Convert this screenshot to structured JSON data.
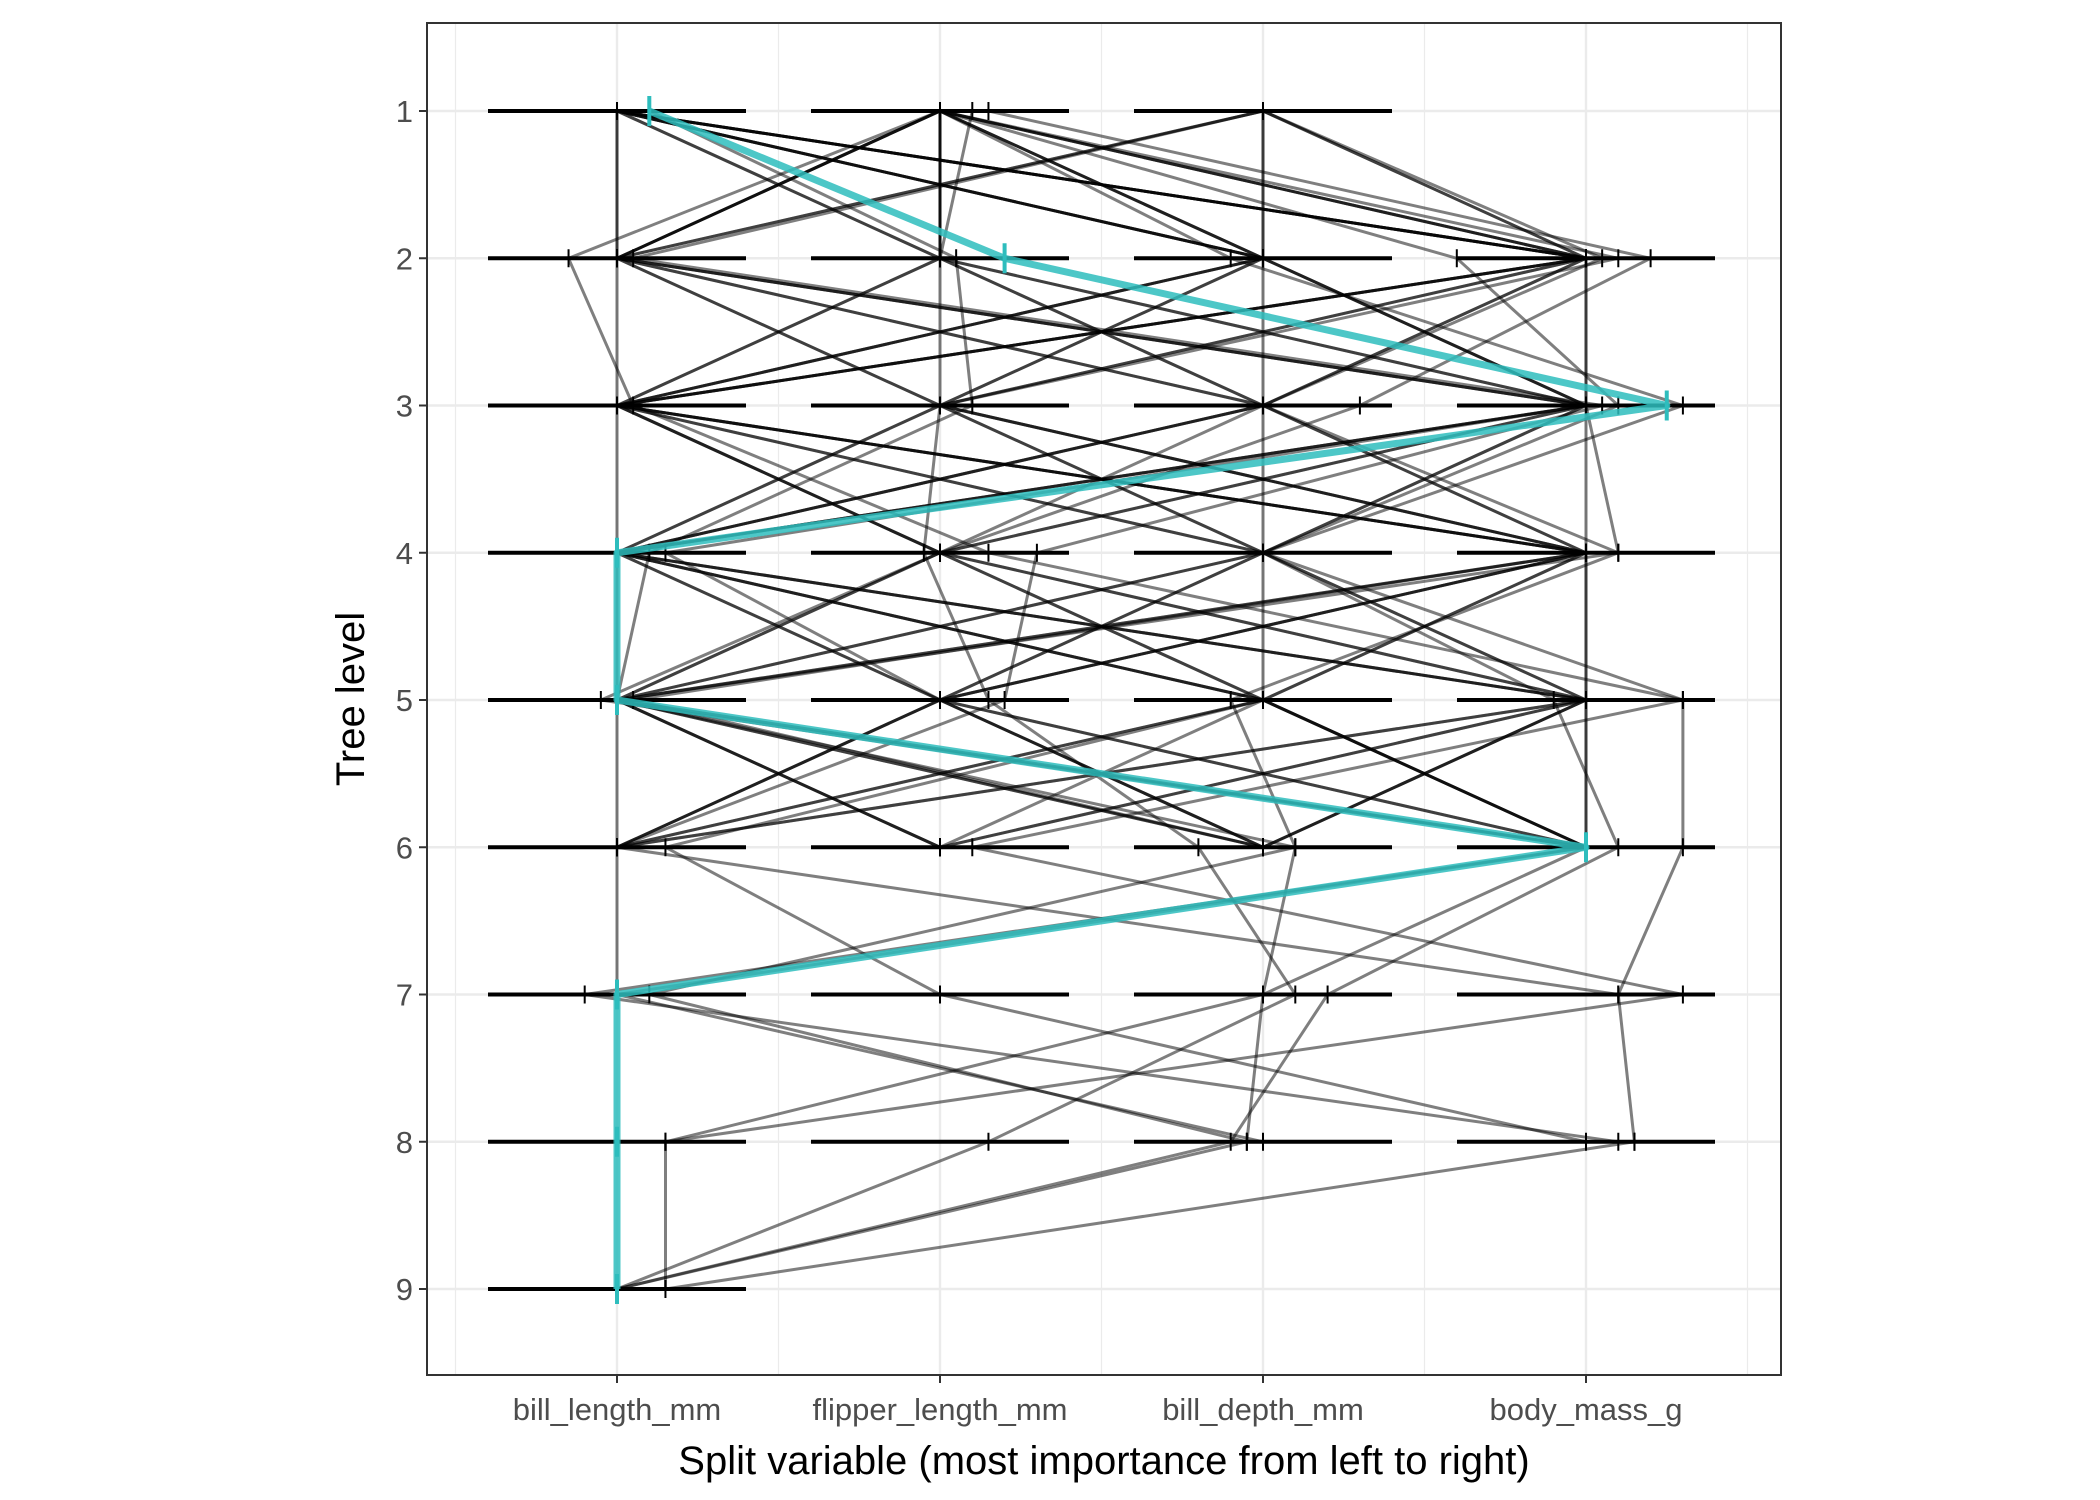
{
  "chart_data": {
    "type": "line",
    "title": "",
    "xlabel": "Split variable (most importance from left to right)",
    "ylabel": "Tree level",
    "categories": [
      "bill_length_mm",
      "flipper_length_mm",
      "bill_depth_mm",
      "body_mass_g"
    ],
    "y_ticks": [
      "1",
      "2",
      "3",
      "4",
      "5",
      "6",
      "7",
      "8",
      "9"
    ],
    "ylim": [
      9.6,
      0.4
    ],
    "y_reversed": true,
    "grid": true,
    "legend": "none",
    "colors": {
      "background_path": "#000000",
      "highlight_path": "#2EBDBD",
      "baseline": "#000000",
      "grid": "#EBEBEB",
      "panel_border": "#333333"
    },
    "level_baselines": [
      {
        "level": 1,
        "variables": [
          0,
          1,
          2
        ]
      },
      {
        "level": 2,
        "variables": [
          0,
          1,
          2,
          3
        ]
      },
      {
        "level": 3,
        "variables": [
          0,
          1,
          2,
          3
        ]
      },
      {
        "level": 4,
        "variables": [
          0,
          1,
          2,
          3
        ]
      },
      {
        "level": 5,
        "variables": [
          0,
          1,
          2,
          3
        ]
      },
      {
        "level": 6,
        "variables": [
          0,
          1,
          2,
          3
        ]
      },
      {
        "level": 7,
        "variables": [
          0,
          1,
          2,
          3
        ]
      },
      {
        "level": 8,
        "variables": [
          0,
          1,
          2,
          3
        ]
      },
      {
        "level": 9,
        "variables": [
          0
        ]
      }
    ],
    "background_paths": [
      [
        [
          1.1,
          1
        ],
        [
          1.0,
          2
        ],
        [
          1.0,
          3
        ],
        [
          0.95,
          4
        ],
        [
          1.15,
          5
        ],
        [
          1.8,
          6
        ],
        [
          2.1,
          7
        ],
        [
          1.15,
          8
        ],
        [
          0.0,
          9
        ]
      ],
      [
        [
          1.0,
          1
        ],
        [
          2.6,
          2
        ],
        [
          3.1,
          3
        ],
        [
          2.0,
          4
        ],
        [
          2.9,
          5
        ],
        [
          3.1,
          6
        ],
        [
          2.2,
          7
        ],
        [
          1.9,
          8
        ],
        [
          0.0,
          9
        ]
      ],
      [
        [
          0.1,
          1
        ],
        [
          1.05,
          2
        ],
        [
          1.1,
          3
        ],
        [
          0.1,
          4
        ],
        [
          0.0,
          5
        ],
        [
          2.1,
          6
        ],
        [
          0.1,
          7
        ],
        [
          1.95,
          8
        ],
        [
          0.0,
          9
        ]
      ],
      [
        [
          2.0,
          1
        ],
        [
          3.05,
          2
        ],
        [
          2.0,
          3
        ],
        [
          3.1,
          4
        ],
        [
          1.9,
          5
        ],
        [
          2.1,
          6
        ],
        [
          2.0,
          7
        ],
        [
          1.95,
          8
        ]
      ],
      [
        [
          1.0,
          1
        ],
        [
          -0.15,
          2
        ],
        [
          0.05,
          3
        ],
        [
          1.15,
          4
        ],
        [
          3.3,
          5
        ],
        [
          3.3,
          6
        ],
        [
          3.1,
          7
        ],
        [
          3.15,
          8
        ]
      ],
      [
        [
          1.15,
          1
        ],
        [
          3.2,
          2
        ],
        [
          2.3,
          3
        ],
        [
          1.0,
          4
        ],
        [
          -0.05,
          5
        ],
        [
          3.0,
          6
        ],
        [
          -0.1,
          7
        ],
        [
          3.1,
          8
        ]
      ],
      [
        [
          1.0,
          1
        ],
        [
          1.9,
          2
        ],
        [
          3.3,
          3
        ],
        [
          2.0,
          4
        ],
        [
          3.3,
          5
        ],
        [
          1.1,
          6
        ],
        [
          3.3,
          7
        ],
        [
          0.15,
          8
        ],
        [
          0.15,
          9
        ],
        [
          3.15,
          8
        ]
      ],
      [
        [
          2.0,
          1
        ],
        [
          0.05,
          2
        ],
        [
          3.05,
          3
        ],
        [
          1.3,
          4
        ],
        [
          1.2,
          5
        ],
        [
          0.0,
          6
        ],
        [
          3.1,
          7
        ]
      ],
      [
        [
          1.0,
          1
        ],
        [
          2.0,
          2
        ],
        [
          0.0,
          3
        ],
        [
          3.0,
          4
        ],
        [
          0.05,
          5
        ],
        [
          2.0,
          6
        ]
      ],
      [
        [
          0.0,
          1
        ],
        [
          3.0,
          2
        ],
        [
          0.0,
          3
        ],
        [
          0.0,
          4
        ],
        [
          2.0,
          5
        ],
        [
          0.15,
          6
        ],
        [
          1.0,
          7
        ],
        [
          3.0,
          8
        ]
      ],
      [
        [
          1.0,
          1
        ],
        [
          0.0,
          2
        ],
        [
          3.0,
          3
        ],
        [
          0.15,
          4
        ],
        [
          1.0,
          5
        ],
        [
          3.0,
          6
        ],
        [
          2.0,
          7
        ],
        [
          0.15,
          8
        ]
      ],
      [
        [
          1.0,
          1
        ],
        [
          3.1,
          2
        ],
        [
          1.0,
          3
        ],
        [
          3.0,
          4
        ],
        [
          0.0,
          5
        ],
        [
          3.0,
          6
        ],
        [
          0.0,
          7
        ]
      ],
      [
        [
          0.0,
          1
        ],
        [
          2.0,
          2
        ],
        [
          3.0,
          3
        ],
        [
          0.0,
          4
        ],
        [
          2.0,
          5
        ],
        [
          0.0,
          6
        ],
        [
          0.0,
          7
        ],
        [
          2.0,
          8
        ]
      ],
      [
        [
          1.0,
          1
        ],
        [
          1.0,
          2
        ],
        [
          2.0,
          3
        ],
        [
          3.0,
          4
        ],
        [
          1.0,
          5
        ],
        [
          2.0,
          6
        ]
      ],
      [
        [
          2.0,
          1
        ],
        [
          3.0,
          2
        ],
        [
          1.0,
          3
        ],
        [
          2.0,
          4
        ],
        [
          3.0,
          5
        ],
        [
          2.0,
          6
        ]
      ],
      [
        [
          0.0,
          1
        ],
        [
          0.0,
          2
        ],
        [
          3.0,
          3
        ],
        [
          3.1,
          4
        ],
        [
          0.0,
          5
        ],
        [
          2.0,
          6
        ]
      ],
      [
        [
          1.0,
          1
        ],
        [
          3.0,
          2
        ],
        [
          3.0,
          3
        ],
        [
          0.0,
          4
        ],
        [
          2.0,
          5
        ],
        [
          3.0,
          6
        ]
      ],
      [
        [
          0.0,
          1
        ],
        [
          2.0,
          2
        ],
        [
          2.0,
          3
        ],
        [
          3.0,
          4
        ],
        [
          3.0,
          5
        ],
        [
          0.0,
          6
        ]
      ],
      [
        [
          1.0,
          1
        ],
        [
          0.0,
          2
        ],
        [
          2.0,
          3
        ],
        [
          2.0,
          4
        ],
        [
          1.0,
          5
        ],
        [
          0.0,
          6
        ]
      ],
      [
        [
          2.0,
          1
        ],
        [
          2.0,
          2
        ],
        [
          0.0,
          3
        ],
        [
          1.0,
          4
        ],
        [
          3.0,
          5
        ],
        [
          3.0,
          6
        ]
      ],
      [
        [
          0.0,
          1
        ],
        [
          1.0,
          2
        ],
        [
          0.0,
          3
        ],
        [
          2.0,
          4
        ],
        [
          0.0,
          5
        ],
        [
          1.0,
          6
        ]
      ],
      [
        [
          1.0,
          1
        ],
        [
          3.0,
          2
        ],
        [
          0.0,
          3
        ],
        [
          1.0,
          4
        ],
        [
          2.0,
          5
        ],
        [
          3.0,
          6
        ]
      ],
      [
        [
          0.0,
          1
        ],
        [
          3.0,
          2
        ],
        [
          1.0,
          3
        ],
        [
          3.0,
          4
        ],
        [
          1.0,
          5
        ],
        [
          0.0,
          6
        ]
      ],
      [
        [
          1.0,
          1
        ],
        [
          2.0,
          2
        ],
        [
          3.0,
          3
        ],
        [
          1.0,
          4
        ],
        [
          0.0,
          5
        ],
        [
          2.0,
          6
        ]
      ],
      [
        [
          2.0,
          1
        ],
        [
          0.0,
          2
        ],
        [
          1.0,
          3
        ],
        [
          0.0,
          4
        ],
        [
          3.0,
          5
        ],
        [
          1.0,
          6
        ]
      ],
      [
        [
          0.0,
          1
        ],
        [
          0.0,
          2
        ],
        [
          2.0,
          3
        ],
        [
          0.0,
          4
        ],
        [
          1.0,
          5
        ],
        [
          3.0,
          6
        ]
      ],
      [
        [
          1.0,
          1
        ],
        [
          1.0,
          2
        ],
        [
          3.0,
          3
        ],
        [
          2.0,
          4
        ],
        [
          2.0,
          5
        ],
        [
          1.0,
          6
        ]
      ],
      [
        [
          0.0,
          1
        ],
        [
          3.0,
          2
        ],
        [
          2.0,
          3
        ],
        [
          1.0,
          4
        ],
        [
          0.0,
          5
        ],
        [
          0.0,
          6
        ]
      ],
      [
        [
          1.0,
          1
        ],
        [
          2.0,
          2
        ],
        [
          1.0,
          3
        ],
        [
          0.0,
          4
        ],
        [
          3.0,
          5
        ],
        [
          2.0,
          6
        ]
      ],
      [
        [
          2.0,
          1
        ],
        [
          3.0,
          2
        ],
        [
          0.0,
          3
        ],
        [
          3.0,
          4
        ],
        [
          2.0,
          5
        ],
        [
          0.0,
          6
        ]
      ],
      [
        [
          0.0,
          1
        ],
        [
          1.0,
          2
        ],
        [
          3.0,
          3
        ],
        [
          1.0,
          4
        ],
        [
          3.0,
          5
        ],
        [
          1.0,
          6
        ]
      ],
      [
        [
          1.0,
          1
        ],
        [
          0.0,
          2
        ],
        [
          0.0,
          3
        ],
        [
          3.0,
          4
        ],
        [
          0.0,
          5
        ],
        [
          3.0,
          6
        ]
      ],
      [
        [
          0.0,
          1
        ],
        [
          2.0,
          2
        ],
        [
          1.0,
          3
        ],
        [
          2.0,
          4
        ],
        [
          3.0,
          5
        ],
        [
          2.0,
          6
        ]
      ],
      [
        [
          1.0,
          1
        ],
        [
          3.0,
          2
        ],
        [
          2.0,
          3
        ],
        [
          0.0,
          4
        ],
        [
          1.0,
          5
        ],
        [
          0.0,
          6
        ]
      ],
      [
        [
          1.0,
          1
        ],
        [
          1.0,
          2
        ],
        [
          0.0,
          3
        ],
        [
          3.0,
          4
        ],
        [
          2.0,
          5
        ],
        [
          3.0,
          6
        ]
      ],
      [
        [
          2.0,
          1
        ],
        [
          2.0,
          2
        ],
        [
          3.0,
          3
        ],
        [
          0.0,
          4
        ],
        [
          0.0,
          5
        ],
        [
          1.0,
          6
        ]
      ],
      [
        [
          0.0,
          1
        ],
        [
          3.0,
          2
        ],
        [
          3.0,
          3
        ],
        [
          2.0,
          4
        ],
        [
          1.0,
          5
        ],
        [
          2.0,
          6
        ]
      ],
      [
        [
          1.0,
          1
        ],
        [
          0.0,
          2
        ],
        [
          1.0,
          3
        ],
        [
          3.0,
          4
        ],
        [
          3.0,
          5
        ],
        [
          0.0,
          6
        ]
      ],
      [
        [
          0.0,
          1
        ],
        [
          2.0,
          2
        ],
        [
          0.0,
          3
        ],
        [
          1.0,
          4
        ],
        [
          2.0,
          5
        ],
        [
          3.0,
          6
        ]
      ],
      [
        [
          1.0,
          1
        ],
        [
          1.0,
          2
        ],
        [
          2.0,
          3
        ],
        [
          0.0,
          4
        ],
        [
          3.0,
          5
        ],
        [
          3.0,
          6
        ]
      ],
      [
        [
          2.0,
          1
        ],
        [
          0.0,
          2
        ],
        [
          3.0,
          3
        ],
        [
          3.0,
          4
        ],
        [
          1.0,
          5
        ],
        [
          2.0,
          6
        ]
      ],
      [
        [
          0.0,
          1
        ],
        [
          3.0,
          2
        ],
        [
          0.0,
          3
        ],
        [
          2.0,
          4
        ],
        [
          0.0,
          5
        ],
        [
          1.0,
          6
        ]
      ]
    ],
    "highlight_path": [
      [
        0.1,
        1
      ],
      [
        1.2,
        2
      ],
      [
        3.25,
        3
      ],
      [
        0.0,
        4
      ],
      [
        0.0,
        5
      ],
      [
        3.0,
        6
      ],
      [
        0.0,
        7
      ],
      [
        0.0,
        8
      ],
      [
        0.0,
        9
      ]
    ]
  }
}
